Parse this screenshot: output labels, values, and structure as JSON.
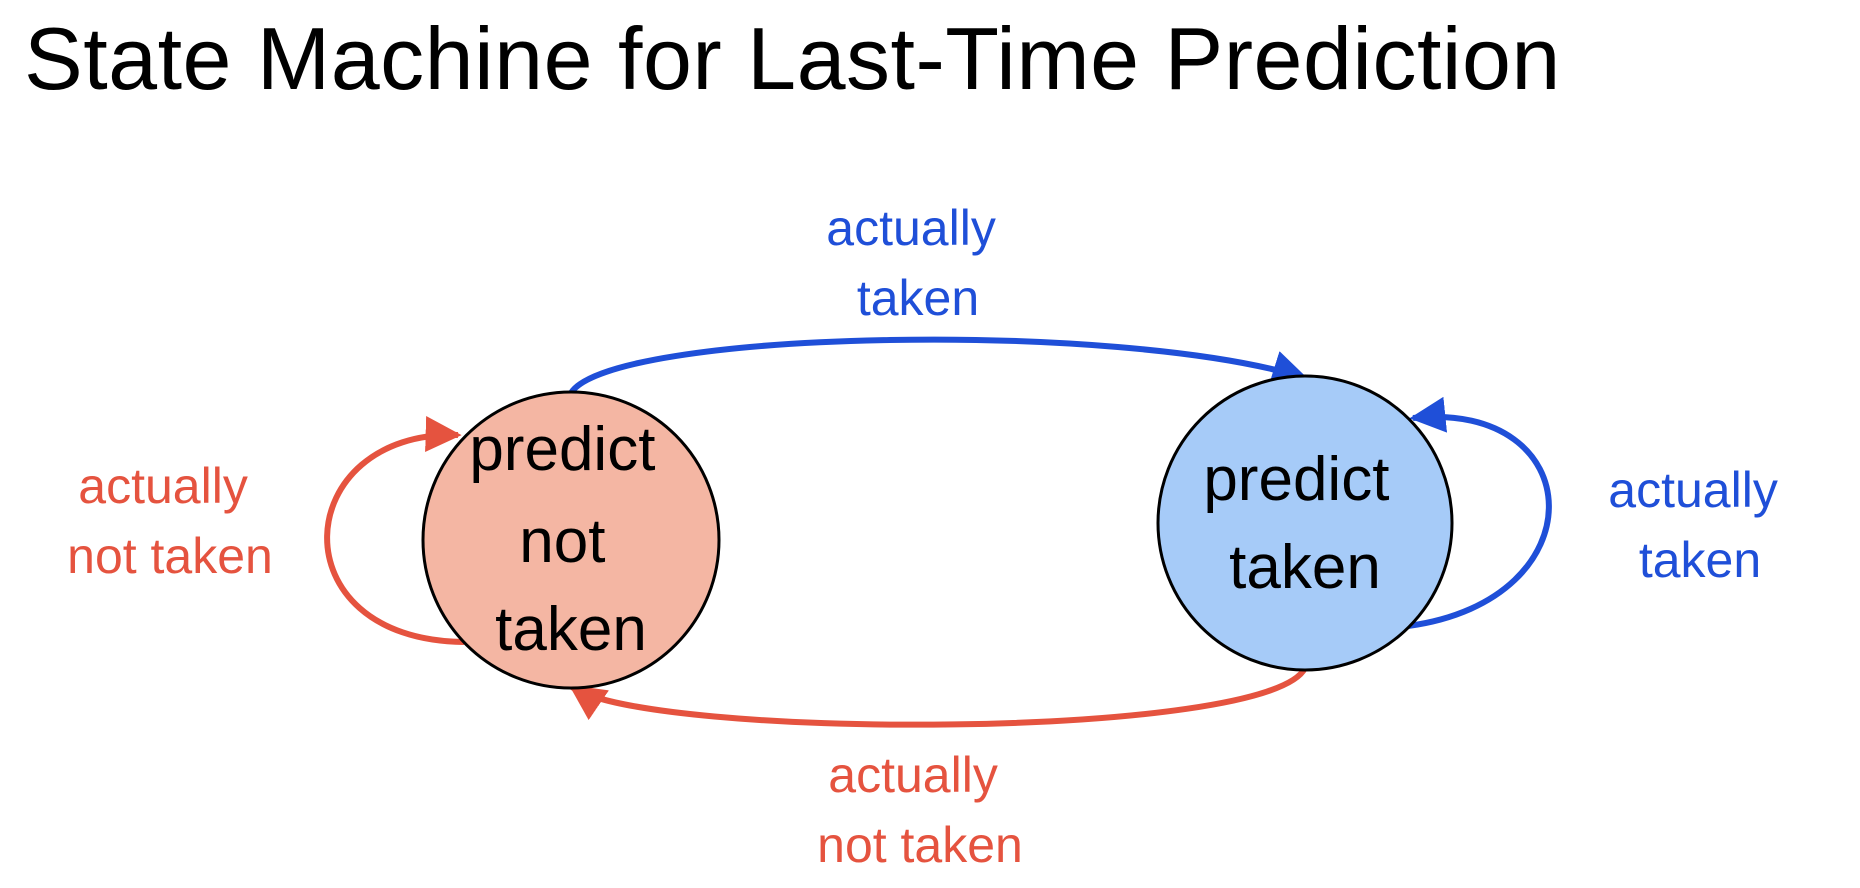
{
  "title": "State Machine for Last-Time Prediction",
  "colors": {
    "taken": "#1f4fd8",
    "not_taken": "#e5533f",
    "state_not_taken_fill": "#f4b6a3",
    "state_taken_fill": "#a6cbf8",
    "outline": "#000000"
  },
  "states": [
    {
      "id": "predict-not-taken",
      "lines": [
        "predict",
        "not",
        "taken"
      ]
    },
    {
      "id": "predict-taken",
      "lines": [
        "predict",
        "taken"
      ]
    }
  ],
  "transitions": [
    {
      "id": "not-taken-to-taken",
      "from": "predict-not-taken",
      "to": "predict-taken",
      "lines": [
        "actually",
        "taken"
      ]
    },
    {
      "id": "taken-self-loop",
      "from": "predict-taken",
      "to": "predict-taken",
      "lines": [
        "actually",
        "taken"
      ]
    },
    {
      "id": "taken-to-not-taken",
      "from": "predict-taken",
      "to": "predict-not-taken",
      "lines": [
        "actually",
        "not taken"
      ]
    },
    {
      "id": "not-taken-self-loop",
      "from": "predict-not-taken",
      "to": "predict-not-taken",
      "lines": [
        "actually",
        "not taken"
      ]
    }
  ]
}
